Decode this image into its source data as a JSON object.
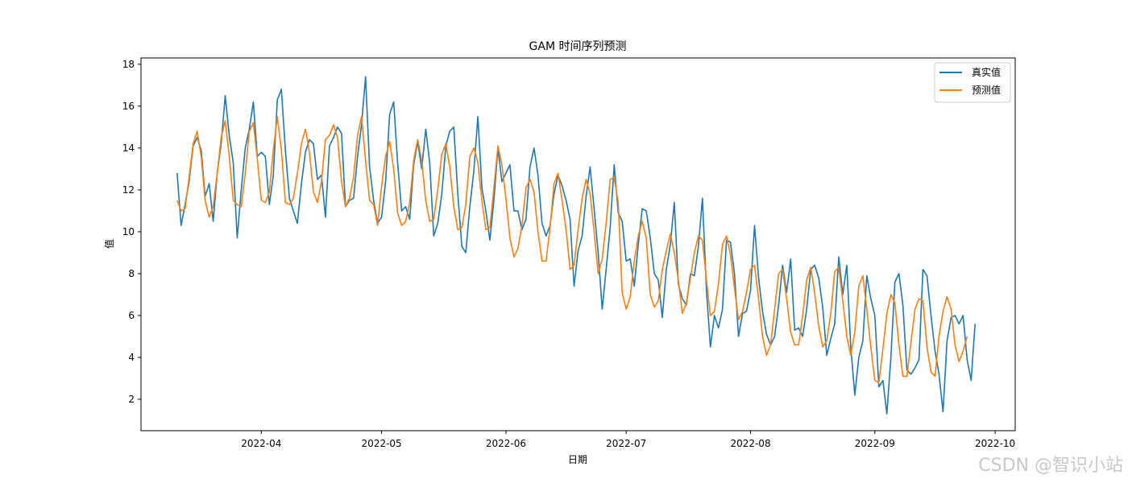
{
  "chart_data": {
    "type": "line",
    "title": "GAM 时间序列预测",
    "xlabel": "日期",
    "ylabel": "值",
    "x_ticks": [
      "2022-04",
      "2022-05",
      "2022-06",
      "2022-07",
      "2022-08",
      "2022-09",
      "2022-10"
    ],
    "y_ticks": [
      "2",
      "4",
      "6",
      "8",
      "10",
      "12",
      "14",
      "16",
      "18"
    ],
    "xlim": [
      "2022-03-02",
      "2022-10-06"
    ],
    "ylim": [
      0.5,
      18.3
    ],
    "grid": false,
    "legend_position": "top-right",
    "series": [
      {
        "name": "真实值",
        "color": "#1f77b4",
        "x_start": "2022-03-11",
        "values": [
          12.8,
          10.3,
          11.3,
          12.4,
          14.1,
          14.5,
          13.9,
          11.7,
          12.3,
          10.5,
          12.8,
          14.2,
          16.5,
          14.6,
          13.3,
          9.7,
          12.0,
          14.0,
          14.9,
          16.2,
          13.6,
          13.8,
          13.6,
          11.3,
          12.7,
          16.3,
          16.8,
          13.9,
          11.6,
          11.0,
          10.4,
          12.3,
          13.8,
          14.4,
          14.2,
          12.5,
          12.7,
          10.7,
          14.1,
          14.5,
          15.0,
          14.7,
          11.2,
          11.5,
          11.6,
          13.6,
          15.1,
          17.4,
          13.1,
          11.5,
          10.4,
          10.7,
          12.4,
          15.6,
          16.2,
          13.3,
          11.0,
          11.2,
          10.6,
          13.2,
          14.3,
          13.0,
          14.9,
          13.3,
          9.8,
          10.4,
          11.8,
          14.1,
          14.8,
          15.0,
          11.8,
          9.3,
          9.0,
          11.2,
          12.9,
          15.5,
          12.1,
          11.0,
          9.6,
          11.5,
          14.0,
          12.4,
          12.8,
          13.2,
          11.0,
          11.0,
          10.1,
          10.6,
          13.1,
          14.0,
          12.7,
          10.4,
          9.8,
          10.3,
          11.8,
          12.7,
          12.2,
          11.5,
          10.6,
          7.4,
          9.1,
          9.8,
          11.7,
          13.1,
          11.1,
          9.0,
          6.3,
          8.2,
          10.2,
          13.2,
          10.9,
          10.5,
          8.6,
          8.7,
          7.4,
          9.4,
          11.1,
          11.0,
          9.7,
          8.0,
          7.7,
          5.9,
          8.2,
          9.4,
          11.4,
          7.5,
          6.8,
          6.5,
          8.0,
          7.9,
          9.3,
          11.6,
          7.2,
          4.5,
          6.0,
          5.4,
          6.3,
          9.6,
          9.5,
          8.0,
          5.0,
          6.1,
          6.2,
          7.2,
          10.3,
          7.8,
          6.2,
          5.1,
          4.6,
          5.0,
          6.5,
          8.4,
          7.1,
          8.7,
          5.3,
          5.4,
          5.0,
          6.3,
          8.2,
          8.4,
          7.8,
          6.4,
          4.1,
          4.9,
          5.6,
          8.8,
          7.0,
          8.4,
          4.5,
          2.2,
          4.0,
          4.8,
          7.9,
          6.8,
          6.0,
          2.6,
          2.9,
          1.3,
          4.0,
          7.6,
          8.0,
          6.5,
          3.4,
          3.2,
          3.5,
          3.9,
          8.2,
          7.9,
          6.0,
          4.3,
          3.2,
          1.4,
          4.8,
          5.9,
          6.0,
          5.6,
          6.0,
          3.9,
          2.9,
          5.6
        ]
      },
      {
        "name": "预测值",
        "color": "#ff7f0e",
        "x_start": "2022-03-11",
        "values": [
          11.5,
          11.0,
          11.1,
          12.6,
          14.2,
          14.8,
          13.6,
          11.5,
          10.7,
          11.2,
          12.8,
          14.5,
          15.3,
          13.6,
          11.5,
          11.3,
          11.2,
          12.8,
          14.8,
          15.2,
          13.5,
          11.5,
          11.4,
          11.9,
          13.9,
          15.5,
          13.9,
          11.4,
          11.3,
          11.6,
          12.8,
          14.2,
          14.9,
          13.8,
          11.9,
          11.4,
          12.4,
          14.4,
          14.6,
          15.1,
          14.5,
          12.4,
          11.2,
          11.6,
          12.6,
          14.6,
          15.5,
          13.4,
          11.5,
          11.3,
          10.3,
          12.2,
          13.6,
          14.3,
          13.0,
          10.9,
          10.3,
          10.5,
          11.4,
          13.4,
          14.4,
          13.4,
          11.5,
          10.5,
          10.6,
          12.0,
          13.7,
          14.2,
          13.1,
          11.2,
          10.1,
          10.2,
          11.3,
          13.6,
          14.0,
          13.3,
          11.5,
          10.1,
          10.2,
          12.1,
          14.1,
          13.2,
          11.6,
          9.7,
          8.8,
          9.2,
          10.3,
          12.1,
          12.5,
          11.9,
          10.0,
          8.6,
          8.6,
          10.2,
          12.3,
          12.8,
          11.5,
          10.1,
          8.2,
          8.4,
          10.1,
          11.6,
          12.5,
          11.8,
          10.0,
          8.0,
          8.7,
          10.4,
          12.5,
          12.6,
          11.4,
          7.1,
          6.3,
          6.9,
          8.6,
          9.8,
          10.5,
          9.7,
          7.0,
          6.4,
          6.7,
          8.2,
          9.1,
          9.9,
          9.0,
          7.7,
          6.1,
          6.6,
          7.8,
          9.0,
          9.8,
          9.6,
          7.7,
          6.0,
          6.2,
          7.5,
          9.4,
          9.8,
          8.9,
          7.3,
          5.8,
          6.2,
          7.1,
          8.2,
          8.4,
          6.8,
          5.0,
          4.1,
          4.6,
          6.3,
          8.0,
          8.2,
          6.8,
          5.2,
          4.6,
          4.6,
          6.0,
          7.7,
          8.3,
          7.1,
          5.5,
          4.5,
          4.8,
          6.1,
          8.1,
          8.3,
          6.7,
          5.0,
          4.1,
          5.2,
          7.4,
          7.9,
          6.3,
          4.5,
          2.9,
          2.8,
          4.4,
          6.1,
          7.0,
          6.6,
          4.6,
          3.1,
          3.1,
          4.7,
          6.3,
          6.8,
          6.7,
          4.5,
          3.3,
          3.1,
          5.0,
          6.2,
          6.9,
          6.3,
          4.6,
          3.8,
          4.3,
          5.0
        ]
      }
    ]
  },
  "watermark": "CSDN @智识小站"
}
